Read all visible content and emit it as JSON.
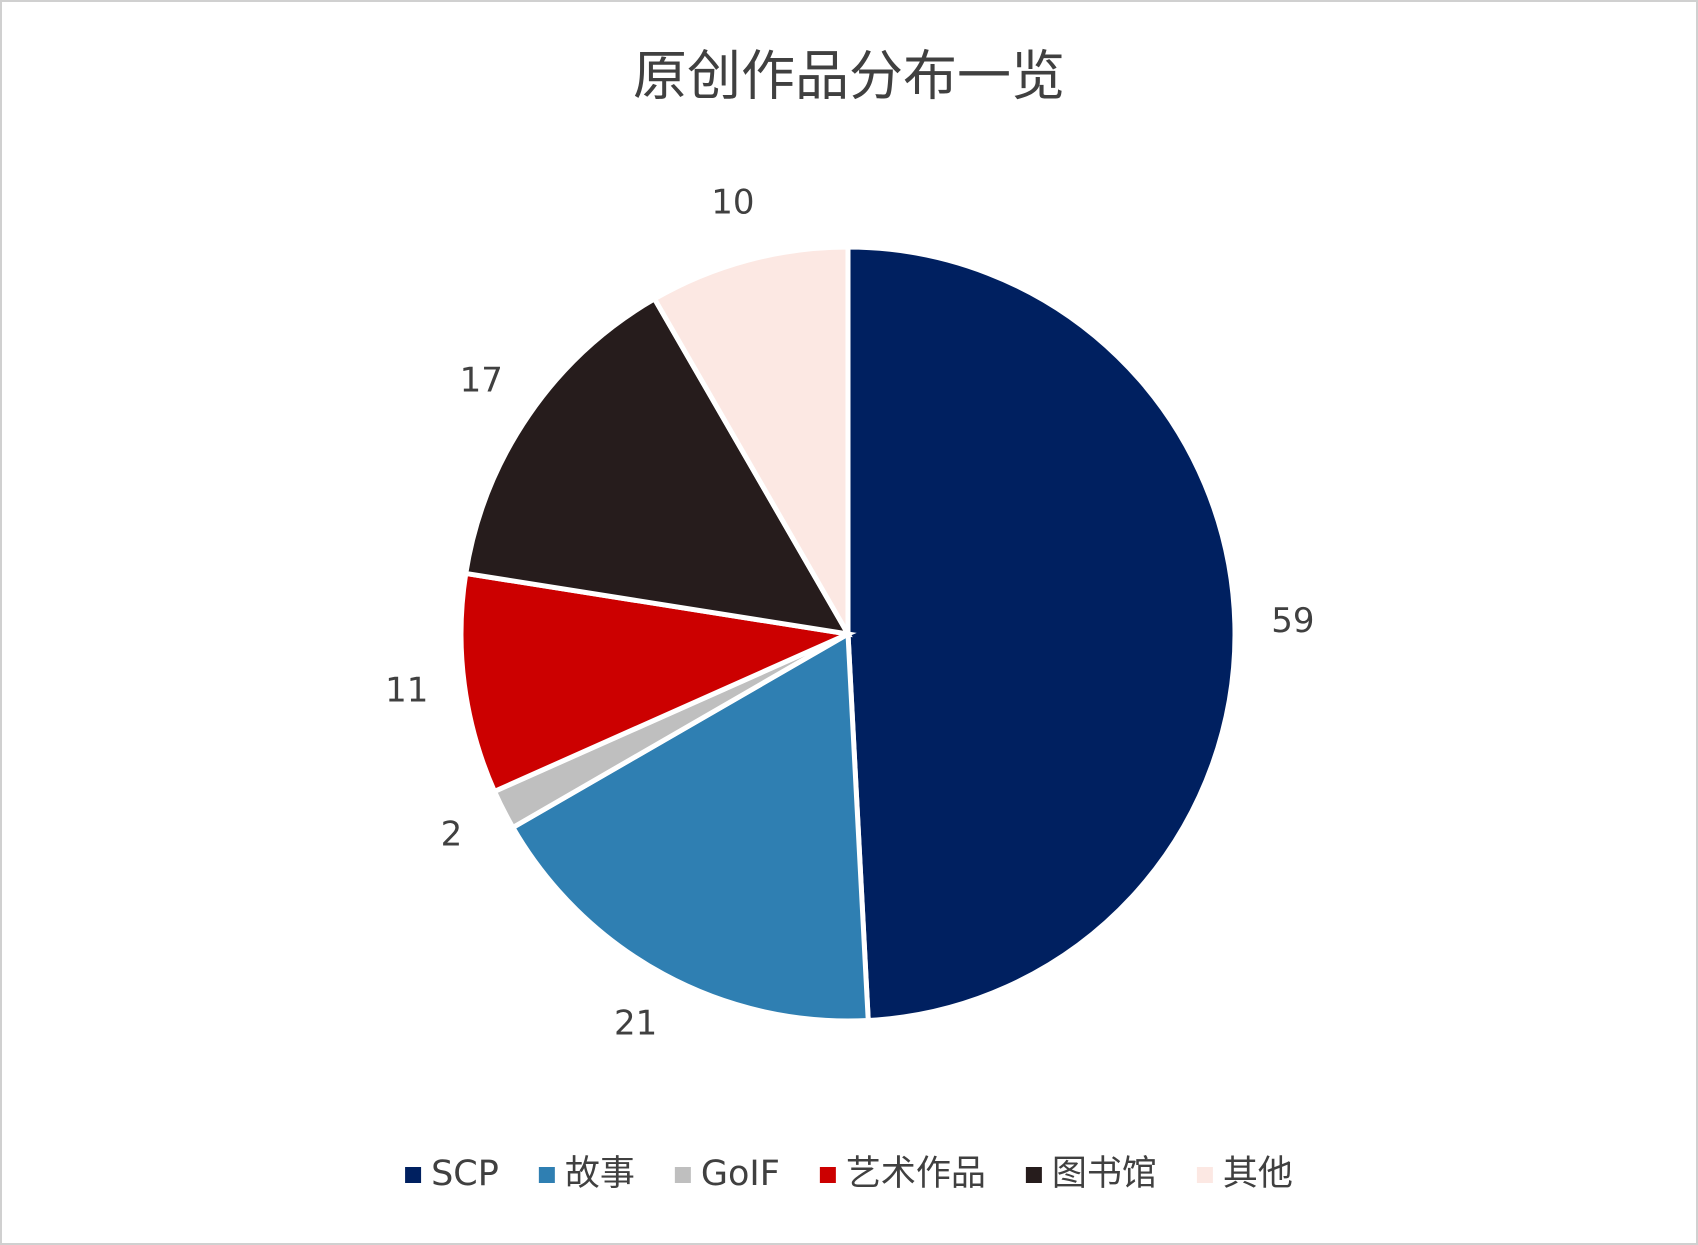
{
  "chart_data": {
    "type": "pie",
    "title": "原创作品分布一览",
    "categories": [
      "SCP",
      "故事",
      "GoIF",
      "艺术作品",
      "图书馆",
      "其他"
    ],
    "values": [
      59,
      21,
      2,
      11,
      17,
      10
    ],
    "colors": [
      "#002060",
      "#2f7fb2",
      "#bfbfbf",
      "#cc0000",
      "#261c1c",
      "#fce8e3"
    ],
    "legend": "bottom"
  }
}
